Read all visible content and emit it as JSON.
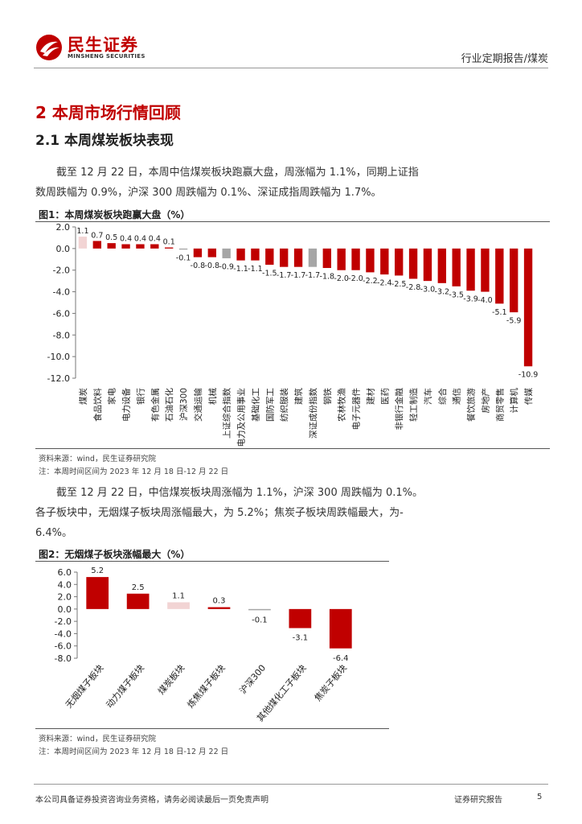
{
  "header": {
    "logo_cn": "民生证券",
    "logo_en": "MINSHENG SECURITIES",
    "report_type": "行业定期报告/煤炭"
  },
  "section": {
    "title": "2 本周市场行情回顾",
    "subtitle": "2.1 本周煤炭板块表现"
  },
  "paragraph1": {
    "line1": "截至 12 月 22 日，本周中信煤炭板块跑赢大盘，周涨幅为 1.1%，同期上证指",
    "line2": "数周跌幅为 0.9%，沪深 300 周跌幅为 0.1%、深证成指周跌幅为 1.7%。"
  },
  "figure1": {
    "title": "图1：本周煤炭板块跑赢大盘（%）",
    "source": "资料来源：wind，民生证券研究院",
    "note": "注：本周时间区间为 2023 年 12 月 18 日-12 月 22 日"
  },
  "paragraph2": {
    "line1": "截至 12 月 22 日，中信煤炭板块周涨幅为 1.1%，沪深 300 周跌幅为 0.1%。",
    "line2": "各子板块中，无烟煤子板块周涨幅最大，为 5.2%；焦炭子板块周跌幅最大，为-",
    "line3": "6.4%。"
  },
  "figure2": {
    "title": "图2：无烟煤子板块涨幅最大（%）",
    "source": "资料来源：wind，民生证券研究院",
    "note": "注：本周时间区间为 2023 年 12 月 18 日-12 月 22 日"
  },
  "footer": {
    "disclaimer": "本公司具备证券投资咨询业务资格，请务必阅读最后一页免责声明",
    "label": "证券研究报告",
    "page": "5"
  },
  "colors": {
    "brand_red": "#c00000",
    "bar_red": "#c00000",
    "highlight_pink": "#f2d4d4",
    "index_gray": "#a6a6a6"
  },
  "chart_data": [
    {
      "type": "bar",
      "title": "本周煤炭板块跑赢大盘（%）",
      "categories": [
        "煤炭",
        "食品饮料",
        "家电",
        "电力设备",
        "银行",
        "有色金属",
        "石油石化",
        "沪深300",
        "交通运输",
        "机械",
        "上证综合指数",
        "电力及公用事业",
        "基础化工",
        "国防军工",
        "纺织服装",
        "建筑",
        "深证成份指数",
        "钢铁",
        "农林牧渔",
        "电子元器件",
        "建材",
        "医药",
        "非银行金融",
        "轻工制造",
        "汽车",
        "综合",
        "通信",
        "餐饮旅游",
        "房地产",
        "商贸零售",
        "计算机",
        "传媒"
      ],
      "values": [
        1.1,
        0.7,
        0.5,
        0.4,
        0.4,
        0.4,
        0.1,
        -0.1,
        -0.8,
        -0.8,
        -0.9,
        -1.1,
        -1.1,
        -1.5,
        -1.7,
        -1.7,
        -1.7,
        -1.8,
        -2.0,
        -2.0,
        -2.2,
        -2.4,
        -2.5,
        -2.8,
        -3.0,
        -3.2,
        -3.5,
        -3.9,
        -4.0,
        -5.1,
        -5.9,
        -10.9
      ],
      "labels": [
        "1.1",
        "0.7",
        "0.5",
        "0.4",
        "0.4",
        "0.4",
        "0.1",
        "-0.1",
        "-0.8",
        "-0.8",
        "-0.9",
        "-1.1",
        "-1.1",
        "-1.5",
        "-1.7",
        "-1.7",
        "-1.7",
        "-1.8",
        "-2.0",
        "-2.0",
        "-2.2",
        "-2.4",
        "-2.5",
        "-2.8",
        "-3.0",
        "-3.2",
        "-3.5",
        "-3.9",
        "-4.0",
        "-5.1",
        "-5.9",
        "-10.9"
      ],
      "highlight": [
        0
      ],
      "index_bars": [
        7,
        10,
        16
      ],
      "ylim": [
        -12.0,
        2.0
      ],
      "yticks": [
        2.0,
        0.0,
        -2.0,
        -4.0,
        -6.0,
        -8.0,
        -10.0,
        -12.0
      ],
      "ytick_labels": [
        "2.0",
        "0.0",
        "-2.0",
        "-4.0",
        "-6.0",
        "-8.0",
        "-10.0",
        "-12.0"
      ],
      "xlabel": "",
      "ylabel": ""
    },
    {
      "type": "bar",
      "title": "无烟煤子板块涨幅最大（%）",
      "categories": [
        "无烟煤子板块",
        "动力煤子板块",
        "煤炭板块",
        "炼焦煤子板块",
        "沪深300",
        "其他煤化工子板块",
        "焦炭子板块"
      ],
      "values": [
        5.2,
        2.5,
        1.1,
        0.3,
        -0.1,
        -3.1,
        -6.4
      ],
      "labels": [
        "5.2",
        "2.5",
        "1.1",
        "0.3",
        "-0.1",
        "-3.1",
        "-6.4"
      ],
      "highlight": [
        2
      ],
      "index_bars": [
        4
      ],
      "ylim": [
        -8.0,
        6.0
      ],
      "yticks": [
        6.0,
        4.0,
        2.0,
        0.0,
        -2.0,
        -4.0,
        -6.0,
        -8.0
      ],
      "ytick_labels": [
        "6.0",
        "4.0",
        "2.0",
        "0.0",
        "-2.0",
        "-4.0",
        "-6.0",
        "-8.0"
      ],
      "xlabel": "",
      "ylabel": ""
    }
  ]
}
